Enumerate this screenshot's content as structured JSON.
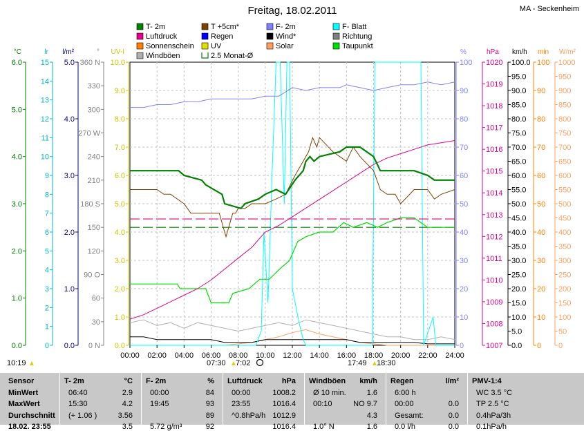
{
  "title": "Freitag, 18.02.2011",
  "location": "MA - Seckenheim",
  "legend": [
    {
      "label": "T- 2m",
      "color": "#008000"
    },
    {
      "label": "T +5cm*",
      "color": "#804000"
    },
    {
      "label": "F- 2m",
      "color": "#8080ff"
    },
    {
      "label": "F- Blatt",
      "color": "#00ffff"
    },
    {
      "label": "Luftdruck",
      "color": "#e0008a"
    },
    {
      "label": "Regen",
      "color": "#0000ff"
    },
    {
      "label": "Wind*",
      "color": "#000000"
    },
    {
      "label": "Richtung",
      "color": "#808080"
    },
    {
      "label": "Sonnenschein",
      "color": "#ff8000"
    },
    {
      "label": "UV",
      "color": "#e0e000"
    },
    {
      "label": "Solar",
      "color": "#ffa060"
    },
    {
      "label": "Taupunkt",
      "color": "#00dd00"
    },
    {
      "label": "Windböen",
      "color": "#b0b0b0"
    },
    {
      "label": "2.5 Monat-Ø",
      "color": "#008000"
    }
  ],
  "left_axes": [
    {
      "unit": "°C",
      "color": "#008000",
      "ticks": [
        "6.0",
        "5.0",
        "4.0",
        "3.0",
        "2.0",
        "1.0",
        "0.0"
      ]
    },
    {
      "unit": "lr",
      "color": "#00bbbb",
      "ticks": [
        "15",
        "14",
        "13",
        "12",
        "11",
        "10",
        "9",
        "8",
        "7",
        "6",
        "5",
        "4",
        "3",
        "2",
        "1",
        "0"
      ]
    },
    {
      "unit": "l/m²",
      "color": "#000080",
      "ticks": [
        "5.0",
        "4.0",
        "3.0",
        "2.0",
        "1.0",
        "0.0"
      ]
    },
    {
      "unit": "°",
      "color": "#808080",
      "ticks": [
        "360 N",
        "330",
        "300",
        "270 W",
        "240",
        "210",
        "180 S",
        "150",
        "120",
        "90 O",
        "60",
        "30",
        "0 N"
      ]
    },
    {
      "unit": "UV-I",
      "color": "#c8c800",
      "ticks": [
        "10.0",
        "9.0",
        "8.0",
        "7.0",
        "6.0",
        "5.0",
        "4.0",
        "3.0",
        "2.0",
        "1.0",
        "0.0"
      ]
    }
  ],
  "right_axes": [
    {
      "unit": "%",
      "color": "#8080ff",
      "ticks": [
        "100",
        "90",
        "80",
        "70",
        "60",
        "50",
        "40",
        "30",
        "20",
        "10",
        "0"
      ]
    },
    {
      "unit": "hPa",
      "color": "#e0008a",
      "ticks": [
        "1020",
        "1019",
        "1018",
        "1017",
        "1016",
        "1015",
        "1014",
        "1013",
        "1012",
        "1011",
        "1010",
        "1009",
        "1008",
        "1007"
      ]
    },
    {
      "unit": "km/h",
      "color": "#000000",
      "ticks": [
        "100.0",
        "95.0",
        "90.0",
        "85.0",
        "80.0",
        "75.0",
        "70.0",
        "65.0",
        "60.0",
        "55.0",
        "50.0",
        "45.0",
        "40.0",
        "35.0",
        "30.0",
        "25.0",
        "20.0",
        "15.0",
        "10.0",
        "5.0",
        "0.0"
      ]
    },
    {
      "unit": "min",
      "color": "#ff8000",
      "ticks": [
        "100",
        "90",
        "80",
        "70",
        "60",
        "50",
        "40",
        "30",
        "20",
        "10",
        "0"
      ]
    },
    {
      "unit": "W/m²",
      "color": "#ffa060",
      "ticks": [
        "1000",
        "950",
        "900",
        "850",
        "800",
        "750",
        "700",
        "650",
        "600",
        "550",
        "500",
        "450",
        "400",
        "350",
        "300",
        "250",
        "200",
        "150",
        "100",
        "50",
        "0"
      ]
    }
  ],
  "x_ticks": [
    "00:00",
    "02:00",
    "04:00",
    "06:00",
    "08:00",
    "10:00",
    "12:00",
    "14:00",
    "16:00",
    "18:00",
    "20:00",
    "22:00",
    "24:00"
  ],
  "sun_events": {
    "update_time": "10:19",
    "sunrise": "07:30",
    "sunrise_mark": "7:02",
    "sunset": "17:49",
    "sunset_mark": "18:30"
  },
  "chart_data": {
    "type": "line",
    "title": "Freitag, 18.02.2011",
    "x_unit": "hours",
    "xlim": [
      0,
      24
    ],
    "grid": true,
    "series": [
      {
        "name": "T- 2m",
        "axis": "°C",
        "ylim": [
          0,
          6
        ],
        "x": [
          0,
          3.6,
          4,
          5.3,
          5.6,
          6.8,
          7,
          8.2,
          8.5,
          9.5,
          10,
          10.8,
          11.5,
          12.2,
          12.8,
          13,
          13.3,
          13.6,
          14,
          15.5,
          16,
          16.5,
          17,
          18,
          18.5,
          20,
          21,
          22,
          22.5,
          24
        ],
        "y": [
          3.7,
          3.7,
          3.6,
          3.5,
          3.4,
          3.2,
          3.0,
          2.9,
          3.0,
          3.1,
          3.2,
          3.3,
          3.2,
          3.5,
          3.7,
          3.9,
          4.0,
          3.9,
          4.0,
          4.1,
          4.2,
          4.2,
          4.2,
          4.0,
          3.7,
          3.7,
          3.7,
          3.6,
          3.5,
          3.5
        ]
      },
      {
        "name": "T +5cm*",
        "axis": "°C",
        "ylim": [
          0,
          6
        ],
        "x": [
          0,
          2,
          2.5,
          3,
          4,
          4.5,
          5.5,
          6.6,
          6.9,
          7.1,
          7.4,
          7.6,
          7.8,
          8,
          8.5,
          9,
          10,
          10.8,
          11.5,
          12.2,
          12.8,
          13.2,
          13.5,
          13.8,
          14,
          15,
          15.5,
          16,
          16.5,
          17,
          18,
          18.5,
          19,
          19.6,
          20,
          21,
          22,
          22.5,
          23,
          24
        ],
        "y": [
          3.3,
          3.3,
          3.2,
          3.2,
          3.0,
          2.8,
          2.8,
          2.8,
          2.5,
          2.3,
          2.6,
          2.8,
          2.8,
          2.9,
          2.9,
          3.0,
          3.0,
          3.1,
          3.2,
          3.6,
          3.9,
          4.1,
          4.4,
          4.2,
          4.4,
          4.1,
          4.0,
          3.9,
          4.2,
          4.0,
          3.7,
          3.3,
          3.2,
          3.2,
          3.0,
          3.3,
          3.3,
          3.1,
          3.2,
          3.3
        ]
      },
      {
        "name": "F- 2m",
        "axis": "%",
        "ylim": [
          0,
          100
        ],
        "x": [
          0,
          1,
          2,
          3,
          4,
          5,
          6,
          7,
          8,
          9,
          10,
          11,
          12,
          13,
          14,
          15,
          15.5,
          16,
          17,
          18,
          19,
          20,
          21,
          22,
          23,
          24
        ],
        "y": [
          84,
          84,
          85,
          85,
          86,
          86,
          87,
          87,
          87,
          87,
          88,
          88,
          91,
          90,
          91,
          91,
          91,
          92,
          91,
          90,
          91,
          92,
          92,
          93,
          92,
          93
        ]
      },
      {
        "name": "Luftdruck",
        "axis": "hPa",
        "ylim": [
          1007,
          1020
        ],
        "x": [
          0,
          1,
          2,
          3,
          4,
          5,
          6,
          7,
          8,
          9,
          10,
          11,
          12,
          13,
          14,
          15,
          16,
          17,
          18,
          19,
          20,
          21,
          22,
          23,
          24
        ],
        "y": [
          1008.2,
          1008.4,
          1008.7,
          1009.0,
          1009.3,
          1009.6,
          1010.0,
          1010.5,
          1011.0,
          1011.5,
          1012.2,
          1012.5,
          1012.9,
          1013.3,
          1013.7,
          1014.1,
          1014.5,
          1014.9,
          1015.3,
          1015.6,
          1015.8,
          1016.0,
          1016.2,
          1016.3,
          1016.4
        ]
      },
      {
        "name": "Taupunkt",
        "axis": "°C",
        "ylim": [
          0,
          6
        ],
        "x": [
          0,
          3.5,
          3.7,
          5.6,
          6,
          7.3,
          7.6,
          8.8,
          9.6,
          10.3,
          11,
          11.8,
          12.4,
          13,
          14,
          15,
          15.8,
          16.5,
          17.5,
          18.3,
          19,
          20,
          21,
          22,
          23,
          24
        ],
        "y": [
          1.3,
          1.3,
          1.2,
          1.2,
          0.9,
          0.9,
          1.1,
          1.2,
          1.4,
          1.4,
          1.6,
          1.8,
          2.2,
          2.3,
          2.4,
          2.4,
          2.6,
          2.5,
          2.6,
          2.5,
          2.6,
          2.7,
          2.7,
          2.5,
          2.5,
          2.5
        ]
      },
      {
        "name": "F- Blatt",
        "axis": "%",
        "ylim": [
          0,
          100
        ],
        "x": [
          0,
          9.3,
          9.7,
          9.9,
          10.2,
          10.5,
          10.8,
          11.1,
          11.4,
          11.6,
          11.8,
          12,
          12.5,
          12.8,
          13,
          17.9,
          18.1,
          21.5,
          21.7,
          22.4,
          22.6,
          24
        ],
        "y": [
          0,
          0,
          5,
          40,
          15,
          60,
          100,
          100,
          50,
          100,
          100,
          20,
          8,
          2,
          0,
          0,
          100,
          100,
          0,
          10,
          0,
          0
        ]
      },
      {
        "name": "2.5 Monat-Ø",
        "axis": "°C",
        "ylim": [
          0,
          6
        ],
        "x": [
          0,
          24
        ],
        "y": [
          2.5,
          2.5
        ]
      },
      {
        "name": "Windböen",
        "axis": "km/h",
        "ylim": [
          0,
          100
        ],
        "x": [
          0,
          1,
          2,
          3,
          4,
          5,
          6,
          7,
          8,
          9,
          10,
          11,
          12,
          13,
          14,
          15,
          16,
          17,
          18,
          19,
          20,
          21,
          22,
          23,
          24
        ],
        "y": [
          8,
          9,
          7,
          8,
          6,
          8,
          7,
          6,
          5,
          6,
          7,
          8,
          7,
          9,
          8,
          7,
          6,
          5,
          4,
          3,
          3,
          2,
          2,
          3,
          2
        ]
      },
      {
        "name": "Wind*",
        "axis": "km/h",
        "ylim": [
          0,
          100
        ],
        "x": [
          0,
          1,
          2,
          3,
          4,
          5,
          6,
          7,
          8,
          9,
          10,
          11,
          12,
          13,
          14,
          15,
          16,
          17,
          18,
          19,
          20,
          21,
          22,
          23,
          24
        ],
        "y": [
          3,
          3,
          2,
          2,
          2,
          2,
          2,
          1,
          1,
          1,
          2,
          2,
          2,
          2,
          2,
          2,
          2,
          1,
          1,
          1,
          1,
          1,
          0.5,
          0.5,
          0.5
        ]
      },
      {
        "name": "Solar",
        "axis": "W/m²",
        "ylim": [
          0,
          1000
        ],
        "x": [
          0,
          7,
          8,
          9,
          10,
          11,
          12,
          13,
          14,
          15,
          16,
          17,
          18,
          19,
          24
        ],
        "y": [
          0,
          0,
          5,
          10,
          20,
          30,
          45,
          55,
          40,
          30,
          20,
          10,
          5,
          0,
          0
        ]
      }
    ]
  },
  "stats": {
    "sensor_col": {
      "header": "Sensor",
      "rows": [
        "MinWert",
        "MaxWert",
        "Durchschnitt",
        "18.02. 23:55"
      ]
    },
    "columns": [
      {
        "header": "T- 2m",
        "unit": "°C",
        "rows": [
          [
            "06:40",
            "2.9"
          ],
          [
            "15:30",
            "4.2"
          ],
          [
            "(+ 1.06 )",
            "3.56"
          ],
          [
            "",
            "3.5"
          ]
        ]
      },
      {
        "header": "F- 2m",
        "unit": "%",
        "rows": [
          [
            "00:00",
            "84"
          ],
          [
            "19:45",
            "93"
          ],
          [
            "",
            "89"
          ],
          [
            "5.72 g/m³",
            "92"
          ]
        ]
      },
      {
        "header": "Luftdruck",
        "unit": "hPa",
        "rows": [
          [
            "00:00",
            "1008.2"
          ],
          [
            "23:55",
            "1016.4"
          ],
          [
            "^0.8hPa/h",
            "1012.9"
          ],
          [
            "",
            "1016.4"
          ]
        ]
      },
      {
        "header": "Windböen",
        "unit": "km/h",
        "rows": [
          [
            "Ø 10 min.",
            "1.6"
          ],
          [
            "00:10",
            "NO 9.7"
          ],
          [
            "",
            "4.3"
          ],
          [
            "1.0° N",
            "1.6"
          ]
        ]
      },
      {
        "header": "Regen",
        "unit": "l/m²",
        "rows": [
          [
            "6:00 h",
            ""
          ],
          [
            "00:00",
            "0.0"
          ],
          [
            "Gesamt:",
            "0.0"
          ],
          [
            "0.0 l/h",
            "0.0"
          ]
        ]
      },
      {
        "header": "PMV-1:4",
        "unit": "",
        "rows": [
          [
            "WC 3.5 °C",
            ""
          ],
          [
            "TP 2.5 °C",
            ""
          ],
          [
            "0.4hPa/3h",
            ""
          ],
          [
            "0.1hPa/h",
            ""
          ]
        ]
      }
    ]
  }
}
